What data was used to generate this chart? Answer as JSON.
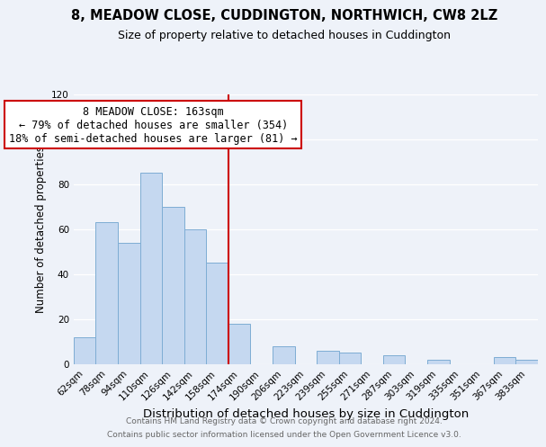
{
  "title1": "8, MEADOW CLOSE, CUDDINGTON, NORTHWICH, CW8 2LZ",
  "title2": "Size of property relative to detached houses in Cuddington",
  "xlabel": "Distribution of detached houses by size in Cuddington",
  "ylabel": "Number of detached properties",
  "categories": [
    "62sqm",
    "78sqm",
    "94sqm",
    "110sqm",
    "126sqm",
    "142sqm",
    "158sqm",
    "174sqm",
    "190sqm",
    "206sqm",
    "223sqm",
    "239sqm",
    "255sqm",
    "271sqm",
    "287sqm",
    "303sqm",
    "319sqm",
    "335sqm",
    "351sqm",
    "367sqm",
    "383sqm"
  ],
  "values": [
    12,
    63,
    54,
    85,
    70,
    60,
    45,
    18,
    0,
    8,
    0,
    6,
    5,
    0,
    4,
    0,
    2,
    0,
    0,
    3,
    2
  ],
  "bar_color": "#c5d8f0",
  "bar_edge_color": "#7eadd4",
  "highlight_line_color": "#cc0000",
  "annotation_box_text": "8 MEADOW CLOSE: 163sqm\n← 79% of detached houses are smaller (354)\n18% of semi-detached houses are larger (81) →",
  "annotation_box_color": "#ffffff",
  "annotation_box_edge_color": "#cc0000",
  "ylim": [
    0,
    120
  ],
  "yticks": [
    0,
    20,
    40,
    60,
    80,
    100,
    120
  ],
  "footer1": "Contains HM Land Registry data © Crown copyright and database right 2024.",
  "footer2": "Contains public sector information licensed under the Open Government Licence v3.0.",
  "title1_fontsize": 10.5,
  "title2_fontsize": 9,
  "xlabel_fontsize": 9.5,
  "ylabel_fontsize": 8.5,
  "tick_fontsize": 7.5,
  "annotation_fontsize": 8.5,
  "footer_fontsize": 6.5,
  "background_color": "#eef2f9"
}
